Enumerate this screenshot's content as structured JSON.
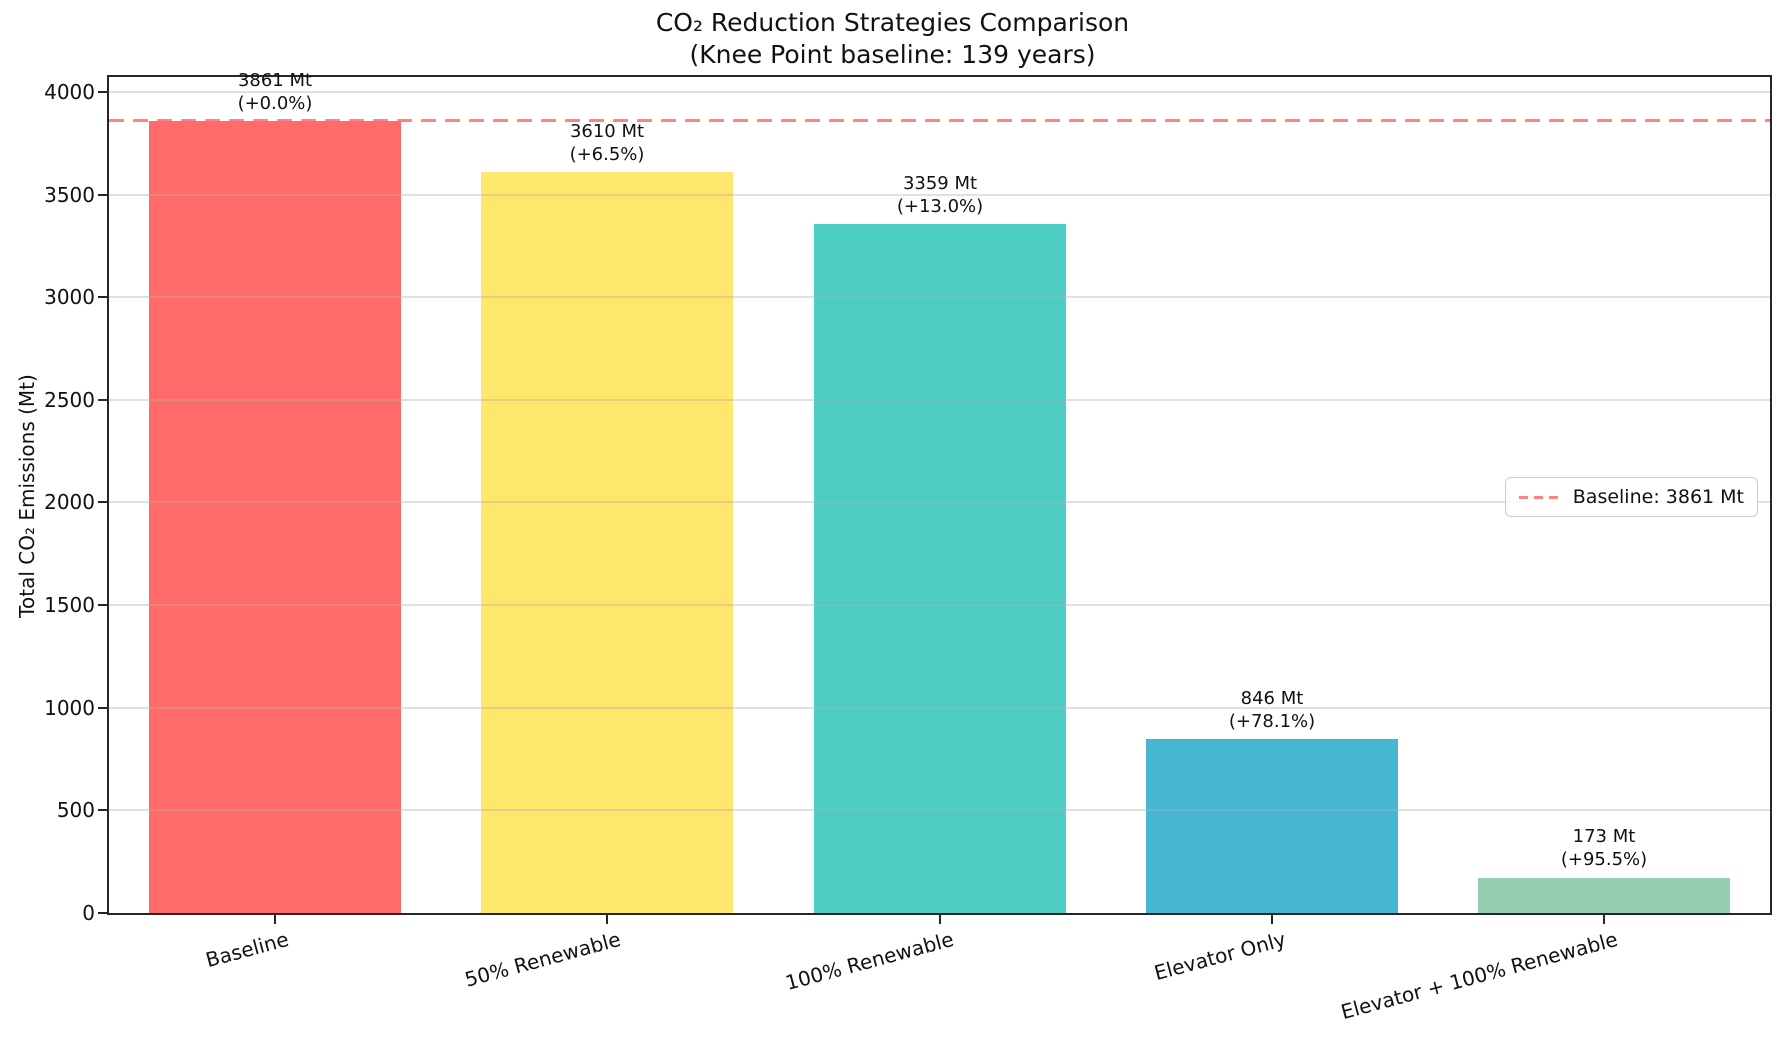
{
  "chart_data": {
    "type": "bar",
    "title": "CO₂ Reduction Strategies Comparison",
    "subtitle": "(Knee Point baseline: 139 years)",
    "ylabel": "Total CO₂ Emissions (Mt)",
    "categories": [
      "Baseline",
      "50% Renewable",
      "100% Renewable",
      "Elevator Only",
      "Elevator + 100% Renewable"
    ],
    "values": [
      3861,
      3610,
      3359,
      846,
      173
    ],
    "bar_labels": [
      {
        "value": "3861 Mt",
        "pct": "(+0.0%)"
      },
      {
        "value": "3610 Mt",
        "pct": "(+6.5%)"
      },
      {
        "value": "3359 Mt",
        "pct": "(+13.0%)"
      },
      {
        "value": "846 Mt",
        "pct": "(+78.1%)"
      },
      {
        "value": "173 Mt",
        "pct": "(+95.5%)"
      }
    ],
    "bar_colors": [
      "#ff6b6b",
      "#ffe66d",
      "#4ecdc4",
      "#45b7d1",
      "#96ceb4"
    ],
    "baseline_line": {
      "value": 3861,
      "legend_label": "Baseline: 3861 Mt",
      "color": "#ff6b6b",
      "style": "dashed"
    },
    "yticks": [
      0,
      500,
      1000,
      1500,
      2000,
      2500,
      3000,
      3500,
      4000
    ],
    "ylim": [
      0,
      4073
    ],
    "grid": true,
    "grid_axis": "y",
    "legend_position": "center-right",
    "xtick_rotation_deg": 15
  }
}
